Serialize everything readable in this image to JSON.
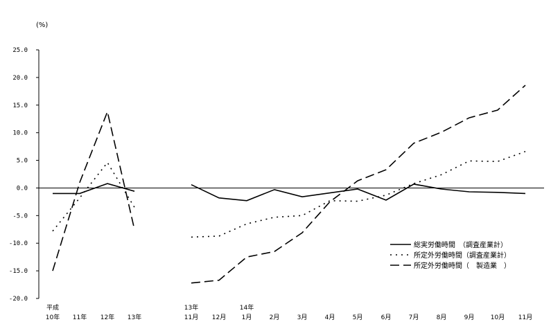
{
  "chart_data": {
    "type": "line",
    "unit_label": "(%)",
    "ylim": [
      -20,
      25
    ],
    "yticks": [
      "25.0",
      "20.0",
      "15.0",
      "10.0",
      "5.0",
      "0.0",
      "-5.0",
      "-10.0",
      "-15.0",
      "-20.0"
    ],
    "categories": [
      {
        "top": "平成",
        "bottom": "10年"
      },
      {
        "top": "",
        "bottom": "11年"
      },
      {
        "top": "",
        "bottom": "12年"
      },
      {
        "top": "",
        "bottom": "13年"
      },
      {
        "top": "13年",
        "bottom": "11月"
      },
      {
        "top": "",
        "bottom": "12月"
      },
      {
        "top": "14年",
        "bottom": "1月"
      },
      {
        "top": "",
        "bottom": "2月"
      },
      {
        "top": "",
        "bottom": "3月"
      },
      {
        "top": "",
        "bottom": "4月"
      },
      {
        "top": "",
        "bottom": "5月"
      },
      {
        "top": "",
        "bottom": "6月"
      },
      {
        "top": "",
        "bottom": "7月"
      },
      {
        "top": "",
        "bottom": "8月"
      },
      {
        "top": "",
        "bottom": "9月"
      },
      {
        "top": "",
        "bottom": "10月"
      },
      {
        "top": "",
        "bottom": "11月"
      }
    ],
    "series": [
      {
        "name": "総実労働時間　（調査産業計）",
        "style": "solid",
        "segments": [
          [
            -1.0,
            -1.0,
            0.8,
            -0.6
          ],
          [
            0.6,
            -1.8,
            -2.3,
            -0.3,
            -1.6,
            -0.9,
            -0.2,
            -2.2,
            0.7,
            -0.2,
            -0.7,
            -0.8,
            -1.0
          ]
        ]
      },
      {
        "name": "所定外労働時間（調査産業計）",
        "style": "dotted",
        "segments": [
          [
            -7.8,
            -1.8,
            4.6,
            -3.5
          ],
          [
            -8.9,
            -8.7,
            -6.5,
            -5.3,
            -5.0,
            -2.3,
            -2.4,
            -1.3,
            0.8,
            2.4,
            4.9,
            4.8,
            6.6
          ]
        ]
      },
      {
        "name": "所定外労働時間（　製造業　）",
        "style": "dashed",
        "segments": [
          [
            -15.0,
            1.0,
            13.8,
            -7.5
          ],
          [
            -17.2,
            -16.7,
            -12.5,
            -11.5,
            -8.1,
            -2.5,
            1.3,
            3.3,
            8.1,
            10.1,
            12.7,
            14.1,
            18.6
          ]
        ]
      }
    ]
  }
}
